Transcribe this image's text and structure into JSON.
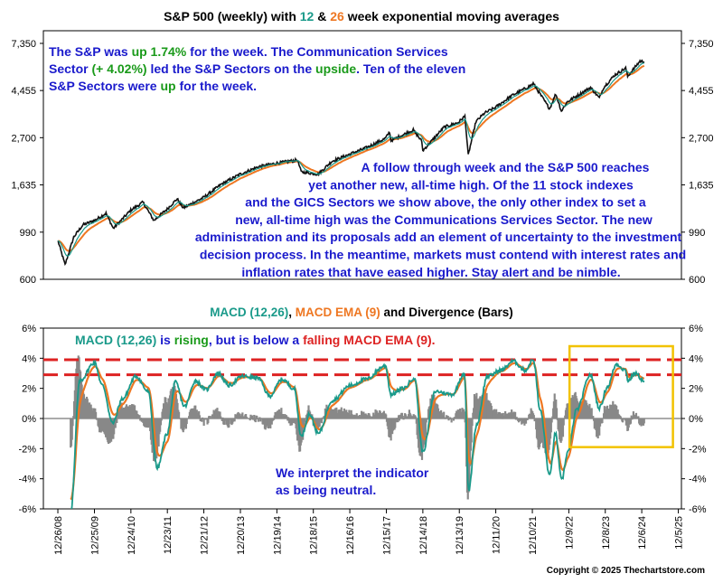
{
  "chart_data": [
    {
      "type": "line",
      "title_parts": [
        {
          "text": "S&P 500 (weekly) with ",
          "color": "#000000"
        },
        {
          "text": "12",
          "color": "#1a9a8a"
        },
        {
          "text": " & ",
          "color": "#000000"
        },
        {
          "text": "26",
          "color": "#ee7722"
        },
        {
          "text": " week exponential moving averages",
          "color": "#000000"
        }
      ],
      "y_scale": "log",
      "ylim": [
        600,
        7350
      ],
      "y_ticks": [
        "7,350",
        "4,455",
        "2,700",
        "1,635",
        "990",
        "600"
      ],
      "y_tick_values": [
        7350,
        4455,
        2700,
        1635,
        990,
        600
      ],
      "series": [
        {
          "name": "S&P 500",
          "color": "#111111"
        },
        {
          "name": "12",
          "color": "#1a9a8a"
        },
        {
          "name": "26",
          "color": "#ee7722"
        }
      ],
      "x": [
        "2008-12-26",
        "2009-03-06",
        "2009-06-01",
        "2009-09-01",
        "2009-12-25",
        "2010-04-20",
        "2010-07-02",
        "2010-12-24",
        "2011-04-25",
        "2011-08-12",
        "2011-12-23",
        "2012-04-01",
        "2012-06-01",
        "2012-12-21",
        "2013-06-20",
        "2013-12-20",
        "2014-06-20",
        "2014-12-19",
        "2015-07-20",
        "2015-08-25",
        "2016-02-10",
        "2016-06-27",
        "2016-12-16",
        "2017-06-20",
        "2017-12-15",
        "2018-01-26",
        "2018-02-09",
        "2018-09-20",
        "2018-12-14",
        "2018-12-24",
        "2019-07-26",
        "2019-12-13",
        "2020-02-19",
        "2020-03-23",
        "2020-06-08",
        "2020-09-01",
        "2020-12-11",
        "2021-06-10",
        "2021-12-10",
        "2022-01-03",
        "2022-06-16",
        "2022-08-16",
        "2022-10-12",
        "2022-12-09",
        "2023-07-31",
        "2023-10-27",
        "2023-12-08",
        "2024-03-28",
        "2024-07-16",
        "2024-08-05",
        "2024-12-06",
        "2025-01-17"
      ],
      "close": [
        900,
        700,
        940,
        1070,
        1120,
        1210,
        1030,
        1250,
        1360,
        1120,
        1265,
        1410,
        1280,
        1430,
        1650,
        1830,
        1980,
        2060,
        2130,
        1880,
        1830,
        2100,
        2260,
        2440,
        2680,
        2870,
        2620,
        2930,
        2600,
        2350,
        3020,
        3170,
        3390,
        2240,
        3200,
        3500,
        3700,
        4240,
        4700,
        4800,
        3670,
        4300,
        3580,
        3950,
        4600,
        4110,
        4600,
        5250,
        5650,
        5180,
        6090,
        6050
      ],
      "ylabel": "",
      "xlabel": ""
    },
    {
      "type": "line",
      "title_parts": [
        {
          "text": "MACD (12,26)",
          "color": "#1a9a8a"
        },
        {
          "text": ", ",
          "color": "#000000"
        },
        {
          "text": "MACD EMA (9)",
          "color": "#ee7722"
        },
        {
          "text": " and Divergence (Bars)",
          "color": "#000000"
        }
      ],
      "ylim": [
        -6,
        6
      ],
      "y_ticks": [
        "6%",
        "4%",
        "2%",
        "0%",
        "-2%",
        "-4%",
        "-6%"
      ],
      "y_tick_values": [
        6,
        4,
        2,
        0,
        -2,
        -4,
        -6
      ],
      "x_tick_labels": [
        "12/26/08",
        "12/25/09",
        "12/24/10",
        "12/23/11",
        "12/21/12",
        "12/20/13",
        "12/19/14",
        "12/18/15",
        "12/16/16",
        "12/15/17",
        "12/14/18",
        "12/13/19",
        "12/11/20",
        "12/10/21",
        "12/9/22",
        "12/8/23",
        "12/6/24",
        "12/5/25"
      ],
      "reference_lines": [
        3.9,
        2.9
      ],
      "series": [
        {
          "name": "MACD (12,26)",
          "color": "#1a9a8a"
        },
        {
          "name": "MACD EMA (9)",
          "color": "#ee7722"
        },
        {
          "name": "Divergence (Bars)",
          "color": "#888888"
        }
      ],
      "x": [
        "2009-05-01",
        "2009-08-01",
        "2009-12-25",
        "2010-03-15",
        "2010-06-25",
        "2010-10-01",
        "2011-02-15",
        "2011-06-15",
        "2011-09-15",
        "2011-12-23",
        "2012-03-15",
        "2012-06-15",
        "2012-10-01",
        "2013-01-15",
        "2013-05-15",
        "2013-09-01",
        "2014-01-15",
        "2014-06-15",
        "2014-10-15",
        "2015-02-15",
        "2015-06-15",
        "2015-08-28",
        "2015-11-15",
        "2016-02-12",
        "2016-07-01",
        "2017-01-01",
        "2017-06-01",
        "2017-12-15",
        "2018-02-09",
        "2018-06-15",
        "2018-10-01",
        "2018-12-24",
        "2019-05-01",
        "2019-10-15",
        "2020-02-14",
        "2020-03-27",
        "2020-06-15",
        "2020-10-01",
        "2021-02-15",
        "2021-06-15",
        "2021-10-15",
        "2022-01-03",
        "2022-03-15",
        "2022-06-17",
        "2022-08-12",
        "2022-10-14",
        "2022-12-15",
        "2023-03-15",
        "2023-07-28",
        "2023-10-27",
        "2024-01-15",
        "2024-04-15",
        "2024-07-15",
        "2024-08-09",
        "2024-10-15",
        "2025-01-17"
      ],
      "macd": [
        -6.2,
        2.5,
        3.7,
        2.2,
        -0.3,
        1.3,
        2.8,
        1.8,
        -3.3,
        -1.0,
        2.4,
        0.8,
        2.5,
        1.9,
        3.0,
        2.2,
        2.8,
        2.7,
        1.5,
        2.6,
        2.0,
        -1.2,
        0.3,
        -1.0,
        1.2,
        2.2,
        2.6,
        3.5,
        1.6,
        2.0,
        2.7,
        -2.2,
        1.8,
        1.6,
        3.0,
        -4.8,
        -0.4,
        2.8,
        3.2,
        3.8,
        3.2,
        3.9,
        0.5,
        -3.8,
        -1.0,
        -4.1,
        -2.2,
        0.6,
        2.9,
        0.7,
        2.1,
        3.6,
        3.2,
        2.5,
        3.0,
        2.5
      ],
      "signal": [
        -4.5,
        1.6,
        3.4,
        2.6,
        0.4,
        0.9,
        2.5,
        2.1,
        -2.5,
        -1.6,
        1.8,
        1.1,
        2.2,
        2.0,
        2.8,
        2.4,
        2.7,
        2.7,
        1.7,
        2.4,
        2.1,
        -0.6,
        0.1,
        -0.7,
        0.9,
        2.0,
        2.5,
        3.3,
        2.0,
        1.9,
        2.6,
        -1.5,
        1.4,
        1.6,
        2.8,
        -3.8,
        -0.8,
        2.3,
        3.1,
        3.6,
        3.3,
        3.7,
        1.0,
        -3.2,
        -1.3,
        -3.6,
        -2.5,
        0.2,
        2.6,
        1.0,
        1.8,
        3.3,
        3.3,
        2.7,
        2.9,
        2.7
      ],
      "annotation_box": {
        "from": "2023-01-01",
        "to": "2025-11-01",
        "top": 4.8,
        "bottom": -1.9
      }
    }
  ],
  "annotations": {
    "price_top_lines": [
      [
        {
          "text": "The S&P was ",
          "color": "#1a1acc"
        },
        {
          "text": "up 1.74%",
          "color": "#1a9a1a"
        },
        {
          "text": " for the week. The Communication Services",
          "color": "#1a1acc"
        }
      ],
      [
        {
          "text": "Sector ",
          "color": "#1a1acc"
        },
        {
          "text": "(+ 4.02%)",
          "color": "#1a9a1a"
        },
        {
          "text": " led the S&P Sectors on the ",
          "color": "#1a1acc"
        },
        {
          "text": "upside",
          "color": "#1a9a1a"
        },
        {
          "text": ".  Ten of the eleven",
          "color": "#1a1acc"
        }
      ],
      [
        {
          "text": "S&P Sectors were ",
          "color": "#1a1acc"
        },
        {
          "text": "up",
          "color": "#1a9a1a"
        },
        {
          "text": " for the week.",
          "color": "#1a1acc"
        }
      ]
    ],
    "price_commentary": [
      "A follow through week and the S&P 500 reaches",
      "yet another new, all-time high.  Of the 11 stock indexes",
      "and the GICS Sectors we show above, the only other index to set a",
      "new, all-time high was the Communications Services Sector.  The new",
      "administration and its proposals add an element of uncertainty to the investment",
      "decision process.  In the meantime, markets must contend with interest rates and",
      "inflation rates that have eased higher.  Stay alert and be nimble."
    ],
    "macd_status": [
      {
        "text": "MACD (12,26)",
        "color": "#1a9a8a"
      },
      {
        "text": " is ",
        "color": "#1a1acc"
      },
      {
        "text": "rising",
        "color": "#1a9a1a"
      },
      {
        "text": ", but is below a ",
        "color": "#1a1acc"
      },
      {
        "text": "falling",
        "color": "#dd2222"
      },
      {
        "text": " MACD EMA (9).",
        "color": "#dd2222"
      }
    ],
    "macd_interpretation": [
      "We interpret the indicator",
      "as being neutral."
    ]
  },
  "copyright": "Copyright © 2025 Thechartstore.com",
  "colors": {
    "price": "#111111",
    "ema12": "#1a9a8a",
    "ema26": "#ee7722",
    "divergence": "#888888",
    "reference": "#dd2222",
    "box": "#f2c200",
    "annotation_text": "#1a1acc",
    "up_text": "#1a9a1a"
  }
}
